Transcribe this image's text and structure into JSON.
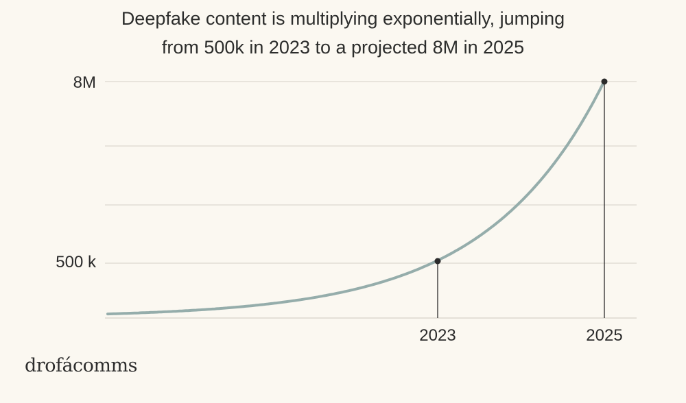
{
  "chart_data": {
    "type": "line",
    "title_lines": [
      "Deepfake content is multiplying exponentially, jumping",
      "from 500k in 2023 to a projected 8M in 2025"
    ],
    "xlabel": "",
    "ylabel": "",
    "y_tick_labels": [
      "8M",
      "500 k"
    ],
    "x_tick_labels": [
      "2023",
      "2025"
    ],
    "grid": true,
    "series": [
      {
        "color": "#95adab",
        "points": [
          {
            "x": "2023",
            "y": 500000
          },
          {
            "x": "2025",
            "y": 8000000
          }
        ]
      }
    ],
    "highlighted_points": [
      {
        "label": "2023",
        "value": 500000
      },
      {
        "label": "2025",
        "value": 8000000
      }
    ],
    "colors": {
      "curve": "#95adab",
      "marker": "#2b2b2b",
      "grid": "#dcd8cf",
      "background": "#fbf8f1"
    }
  },
  "brand": "drofácomms"
}
